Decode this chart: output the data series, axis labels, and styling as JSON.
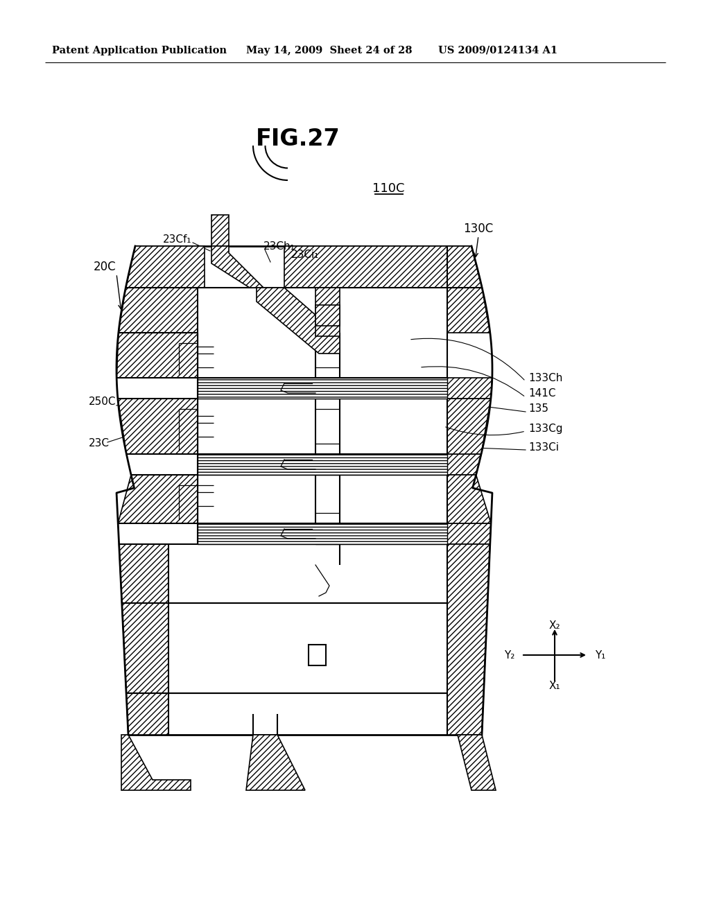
{
  "bg_color": "#ffffff",
  "header_left": "Patent Application Publication",
  "header_mid": "May 14, 2009  Sheet 24 of 28",
  "header_right": "US 2009/0124134 A1",
  "fig_title": "FIG.27",
  "label_110C": "110C",
  "label_20C": "20C",
  "label_23Cf1": "23Cf₁",
  "label_23Ch1": "23Ch₁",
  "label_23Ci1": "23Ci₁",
  "label_130C": "130C",
  "label_250C": "250C",
  "label_23C": "23C",
  "label_133Ch": "133Ch",
  "label_141C": "141C",
  "label_135": "135",
  "label_133Cg": "133Cg",
  "label_133Ci": "133Ci"
}
